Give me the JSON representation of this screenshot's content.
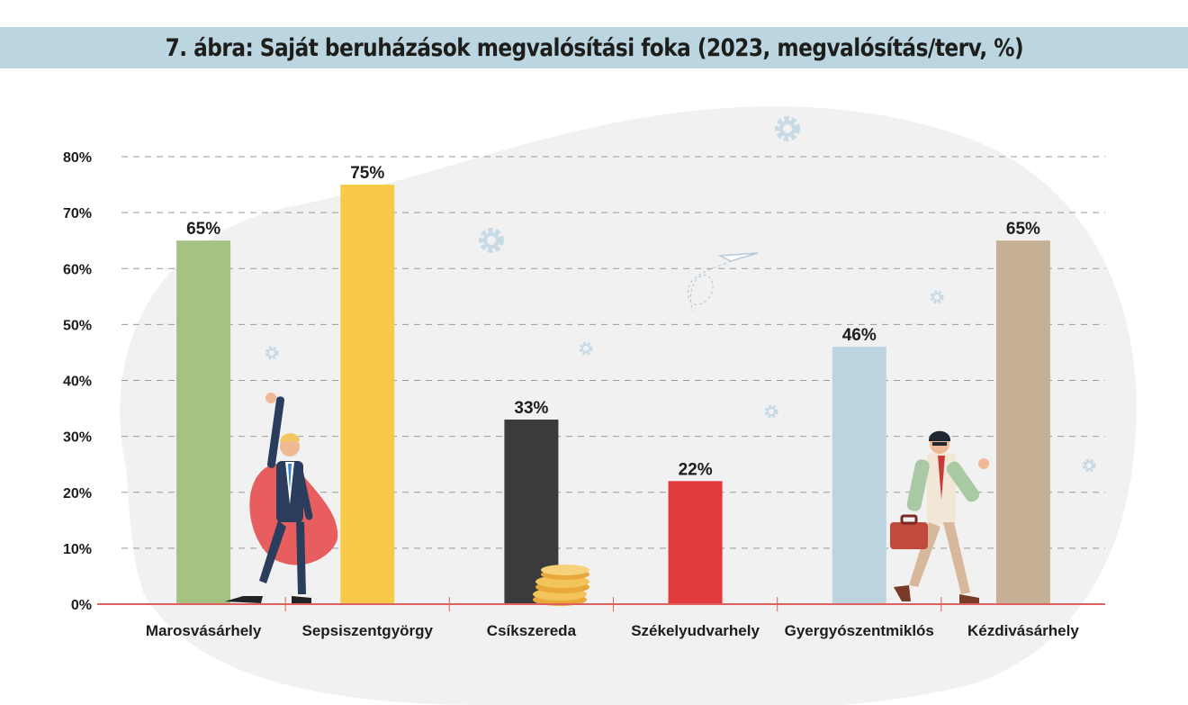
{
  "title": "7. ábra: Saját beruházások megvalósítási foka (2023, megvalósítás/terv, %)",
  "chart_data": {
    "type": "bar",
    "categories": [
      "Marosvásárhely",
      "Sepsiszentgyörgy",
      "Csíkszereda",
      "Székelyudvarhely",
      "Gyergyószentmiklós",
      "Kézdivásárhely"
    ],
    "values": [
      65,
      75,
      33,
      22,
      46,
      65
    ],
    "data_labels": [
      "65%",
      "75%",
      "33%",
      "22%",
      "46%",
      "65%"
    ],
    "bar_colors": [
      "#a3c283",
      "#f8ca4a",
      "#3b3b3b",
      "#e2393e",
      "#bcd3e0",
      "#c6b095"
    ],
    "ylim": [
      0,
      80
    ],
    "yticks": [
      0,
      10,
      20,
      30,
      40,
      50,
      60,
      70,
      80
    ],
    "ytick_labels": [
      "0%",
      "10%",
      "20%",
      "30%",
      "40%",
      "50%",
      "60%",
      "70%",
      "80%"
    ],
    "grid": true,
    "legend": "none"
  },
  "colors": {
    "title_band": "#bcd6e1",
    "axis_line": "#e06060",
    "grid": "#9a9a9a",
    "background_blob": "#f1f1f2",
    "decor_icons": "#c8dae6"
  }
}
